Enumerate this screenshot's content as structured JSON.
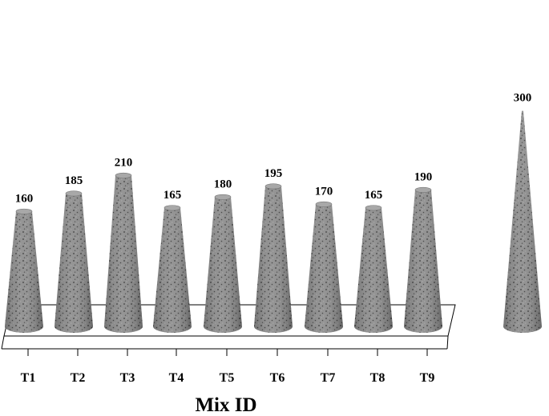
{
  "chart_data": {
    "type": "bar",
    "bar_shape": "cone",
    "categories": [
      "T1",
      "T2",
      "T3",
      "T4",
      "T5",
      "T6",
      "T7",
      "T8",
      "T9",
      ""
    ],
    "values": [
      160,
      185,
      210,
      165,
      180,
      195,
      170,
      165,
      190,
      300
    ],
    "data_labels": [
      "160",
      "185",
      "210",
      "165",
      "180",
      "195",
      "170",
      "165",
      "190",
      "300"
    ],
    "title": "",
    "xlabel": "Mix ID",
    "ylabel": "",
    "ylim": [
      0,
      300
    ],
    "grid": false,
    "legend": "none"
  },
  "colors": {
    "cone_fill": "#8a8a8a",
    "cone_top": "#a8a8a8",
    "axis": "#000000",
    "background": "#ffffff"
  }
}
